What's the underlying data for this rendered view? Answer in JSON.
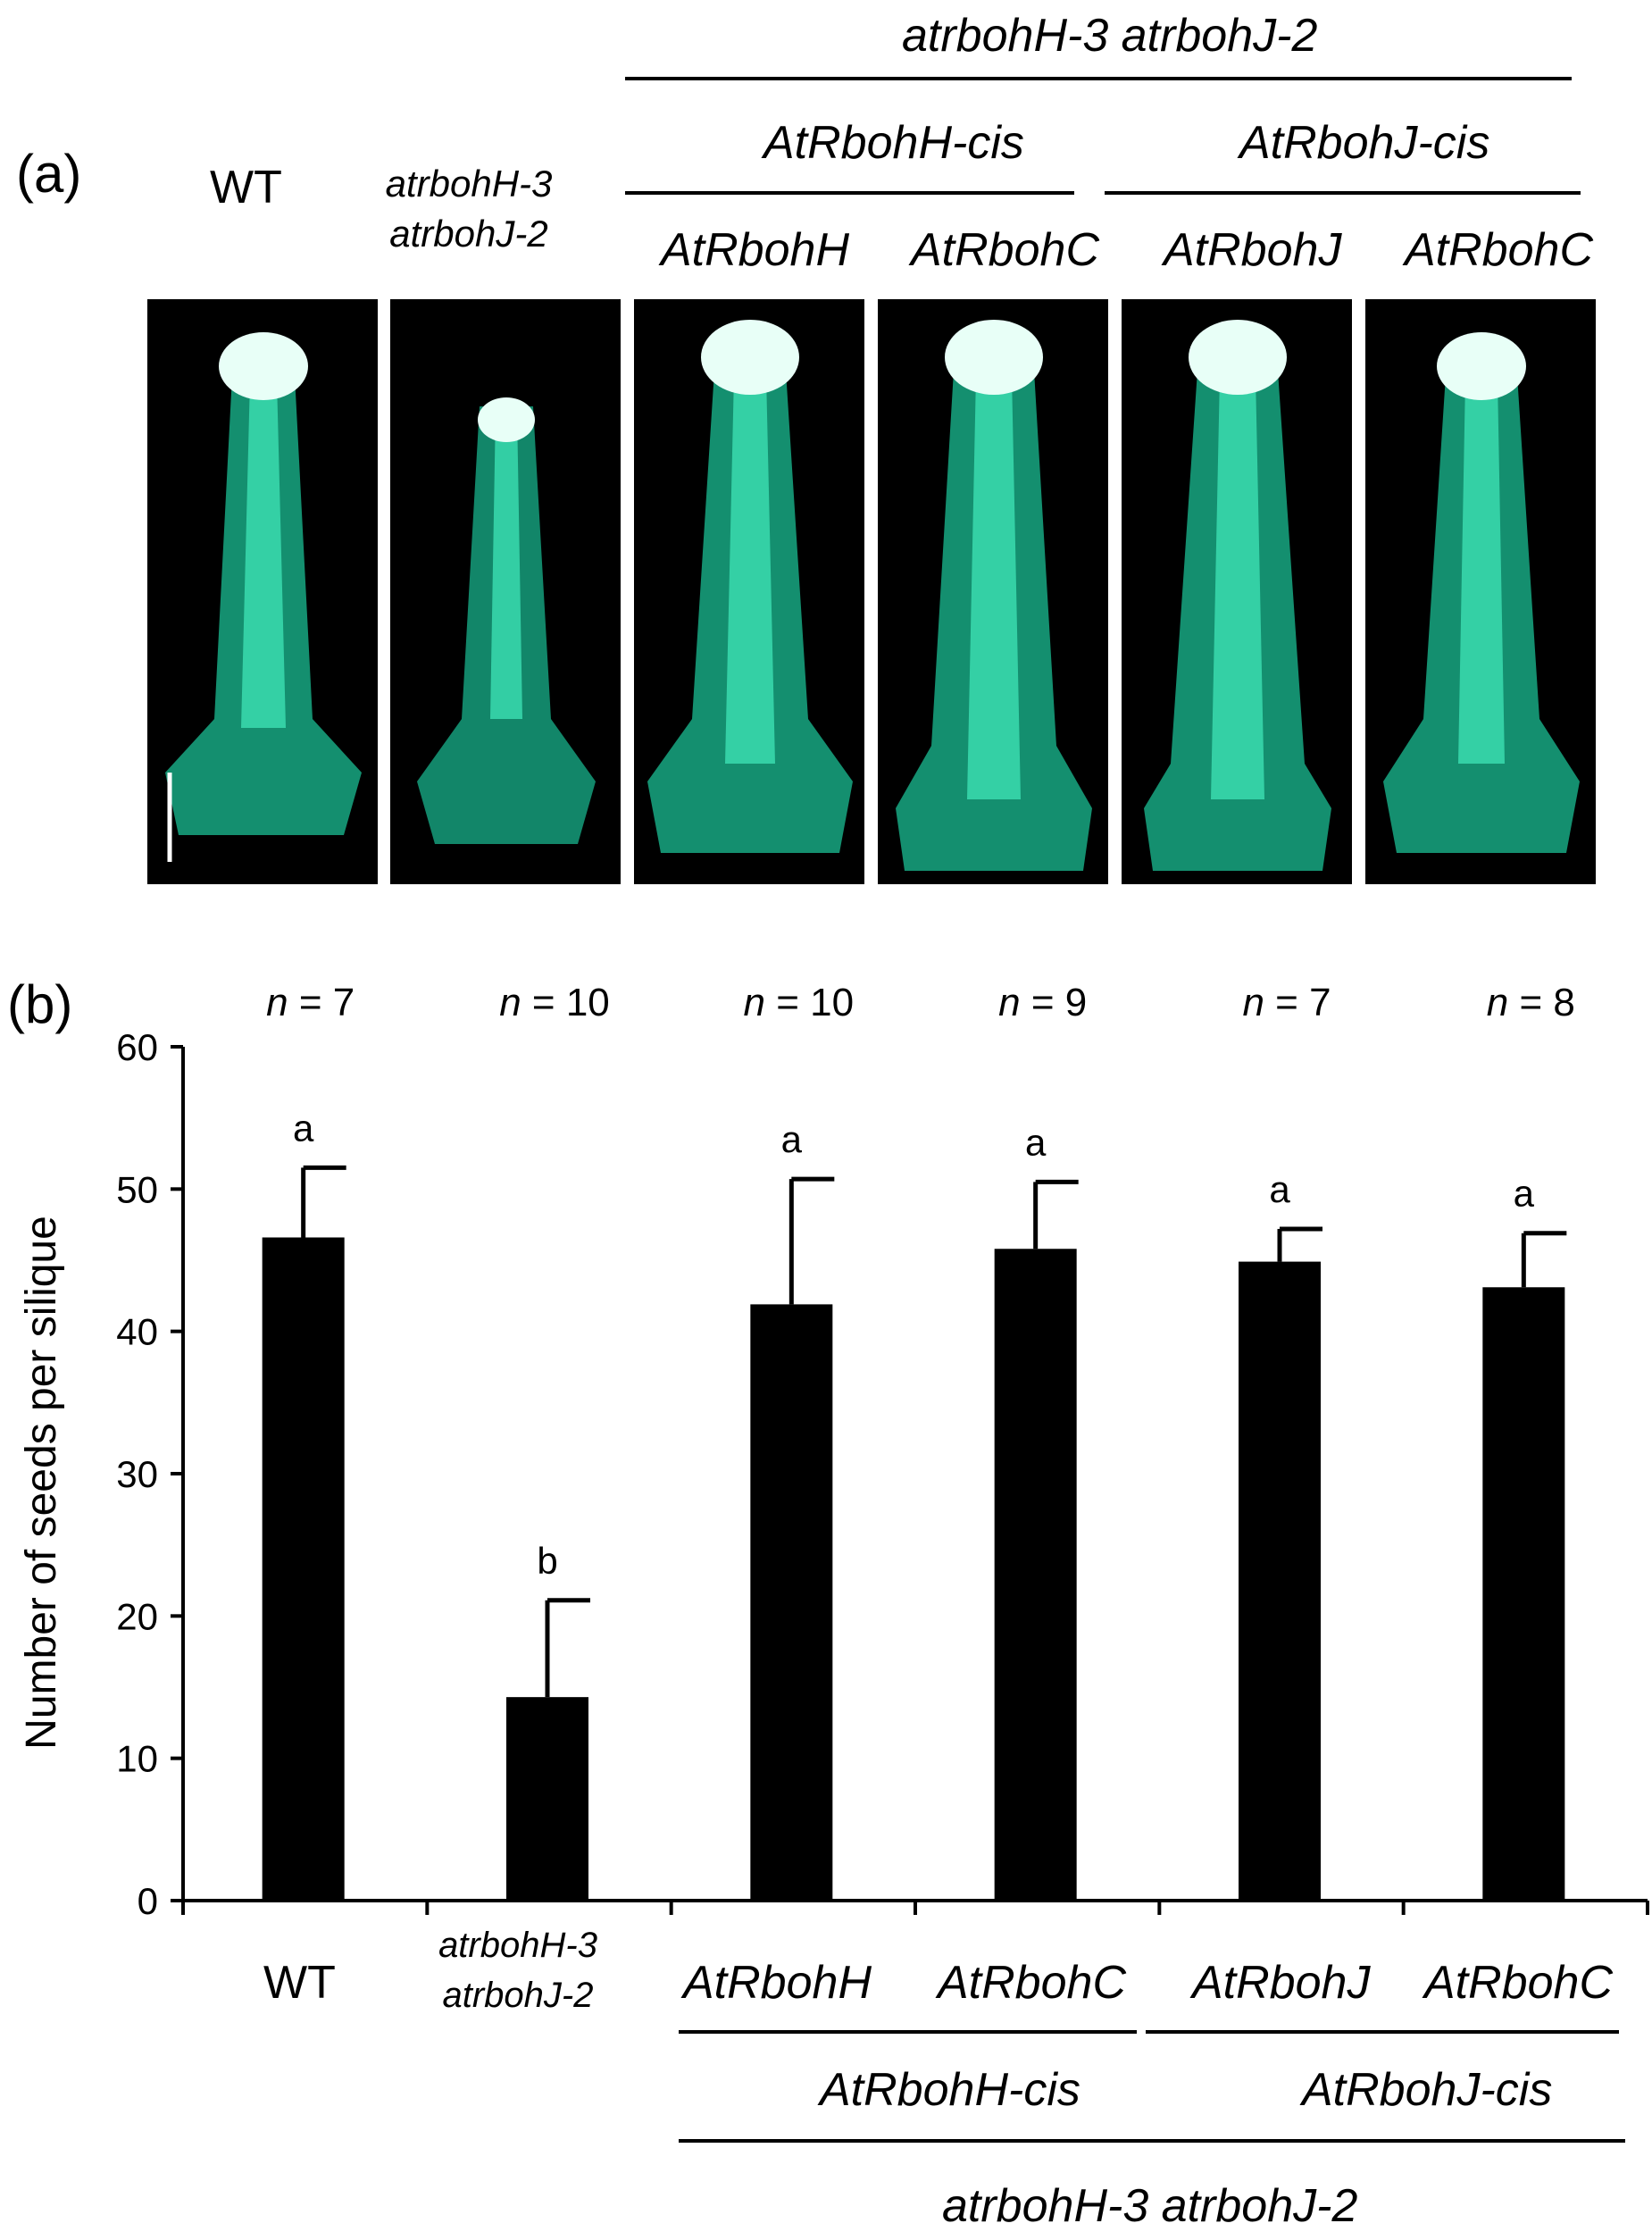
{
  "panel_a": {
    "label": "(a)",
    "top_group_label": "atrbohH-3 atrbohJ-2",
    "sub_groups": [
      "AtRbohH-cis",
      "AtRbohJ-cis"
    ],
    "columns": [
      {
        "label": "WT"
      },
      {
        "label_line1": "atrbohH-3",
        "label_line2": "atrbohJ-2"
      },
      {
        "label": "AtRbohH"
      },
      {
        "label": "AtRbohC"
      },
      {
        "label": "AtRbohJ"
      },
      {
        "label": "AtRbohC"
      }
    ],
    "image_color": "#29e0a8"
  },
  "chart_data": {
    "type": "bar",
    "panel_label": "(b)",
    "categories": [
      "WT",
      "atrbohH-3 atrbohJ-2",
      "AtRbohH",
      "AtRbohC",
      "AtRbohJ",
      "AtRbohC"
    ],
    "values": [
      46.6,
      14.3,
      41.9,
      45.8,
      44.9,
      43.1
    ],
    "errors": [
      4.9,
      6.8,
      8.8,
      4.7,
      2.3,
      3.8
    ],
    "significance_letters": [
      "a",
      "b",
      "a",
      "a",
      "a",
      "a"
    ],
    "n_labels": [
      "n = 7",
      "n = 10",
      "n = 10",
      "n = 9",
      "n = 7",
      "n = 8"
    ],
    "ylabel": "Number of seeds per silique",
    "xlabel": "",
    "ylim": [
      0,
      60
    ],
    "yticks": [
      0,
      10,
      20,
      30,
      40,
      50,
      60
    ],
    "bar_color": "#000000",
    "x_group_labels": {
      "mutant_line1": "atrbohH-3",
      "mutant_line2": "atrbohJ-2",
      "sub_groups": [
        "AtRbohH-cis",
        "AtRbohJ-cis"
      ],
      "bottom_group": "atrbohH-3 atrbohJ-2"
    },
    "grid": false
  }
}
